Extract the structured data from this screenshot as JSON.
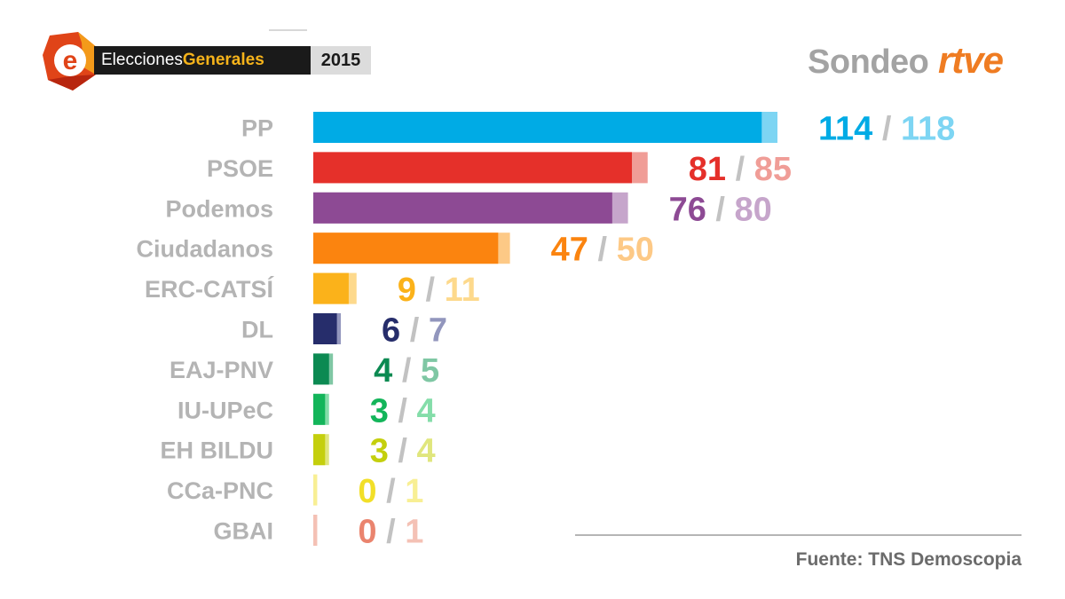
{
  "header": {
    "logo_letter": "e",
    "title_part1": "Elecciones",
    "title_part2": "Generales",
    "year": "2015",
    "brand_sondeo": "Sondeo",
    "brand_rtve": "rtve"
  },
  "source": "Fuente: TNS Demoscopia",
  "chart_data": {
    "type": "bar",
    "orientation": "horizontal",
    "categories": [
      "PP",
      "PSOE",
      "Podemos",
      "Ciudadanos",
      "ERC-CATSÍ",
      "DL",
      "EAJ-PNV",
      "IU-UPeC",
      "EH BILDU",
      "CCa-PNC",
      "GBAI"
    ],
    "series": [
      {
        "values": [
          114,
          81,
          76,
          47,
          9,
          6,
          4,
          3,
          3,
          0,
          0
        ]
      },
      {
        "values": [
          118,
          85,
          80,
          50,
          11,
          7,
          5,
          4,
          4,
          1,
          1
        ]
      }
    ],
    "colors": [
      "#00abe5",
      "#e5302a",
      "#8d4a94",
      "#fb840f",
      "#fbb21a",
      "#262d6b",
      "#0c8a52",
      "#13b55a",
      "#c4cf0d",
      "#f2df28",
      "#ea846e"
    ],
    "light_colors": [
      "#7dd5f3",
      "#f09d97",
      "#c6a5cb",
      "#fdc986",
      "#fdd98c",
      "#9296bd",
      "#7fc7a4",
      "#84dda9",
      "#e0e67d",
      "#f8ef94",
      "#f4c1b5"
    ],
    "xlim": [
      0,
      118
    ]
  }
}
